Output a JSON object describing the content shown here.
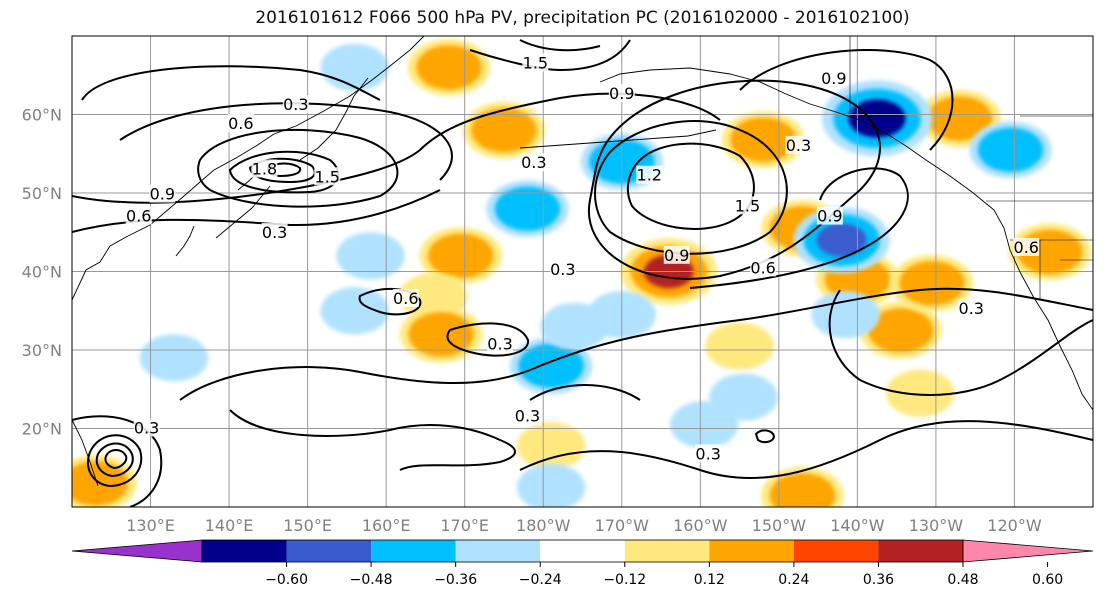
{
  "chart_data": {
    "type": "heatmap",
    "title": "2016101612 F066 500 hPa PV, precipitation PC (2016102000 - 2016102100)",
    "map": {
      "lon_range": [
        120,
        250
      ],
      "lat_range": [
        10,
        70
      ],
      "projection": "PlateCarree",
      "grid": true
    },
    "x_ticks": [
      "130°E",
      "140°E",
      "150°E",
      "160°E",
      "170°E",
      "180°W",
      "170°W",
      "160°W",
      "150°W",
      "140°W",
      "130°W",
      "120°W"
    ],
    "x_tick_values": [
      130,
      140,
      150,
      160,
      170,
      180,
      190,
      200,
      210,
      220,
      230,
      240
    ],
    "y_ticks": [
      "20°N",
      "30°N",
      "40°N",
      "50°N",
      "60°N"
    ],
    "y_tick_values": [
      20,
      30,
      40,
      50,
      60
    ],
    "colorbar": {
      "levels": [
        -0.72,
        -0.6,
        -0.48,
        -0.36,
        -0.24,
        -0.12,
        0.12,
        0.24,
        0.36,
        0.48,
        0.6,
        0.72
      ],
      "tick_labels": [
        "−0.60",
        "−0.48",
        "−0.36",
        "−0.24",
        "−0.12",
        "0.12",
        "0.24",
        "0.36",
        "0.48",
        "0.60"
      ],
      "tick_values": [
        -0.6,
        -0.48,
        -0.36,
        -0.24,
        -0.12,
        0.12,
        0.24,
        0.36,
        0.48,
        0.6
      ],
      "colors": [
        "#9932cc",
        "#00008b",
        "#3a5bcd",
        "#00bfff",
        "#b0e2ff",
        "#ffffff",
        "#ffe97f",
        "#ffa500",
        "#ff4500",
        "#b22222",
        "#ff88aa"
      ],
      "extend": "both"
    },
    "contour_labels": [
      {
        "text": "0.3",
        "lon": 148.5,
        "lat": 61.2
      },
      {
        "text": "0.6",
        "lon": 141.5,
        "lat": 58.8
      },
      {
        "text": "1.8",
        "lon": 144.5,
        "lat": 53.0
      },
      {
        "text": "1.5",
        "lon": 152.5,
        "lat": 52.0
      },
      {
        "text": "0.9",
        "lon": 131.5,
        "lat": 49.8
      },
      {
        "text": "0.6",
        "lon": 128.5,
        "lat": 47.0
      },
      {
        "text": "0.3",
        "lon": 145.8,
        "lat": 44.9
      },
      {
        "text": "1.5",
        "lon": 179.0,
        "lat": 66.5
      },
      {
        "text": "0.9",
        "lon": 190.0,
        "lat": 62.6
      },
      {
        "text": "0.3",
        "lon": 178.8,
        "lat": 53.8
      },
      {
        "text": "1.2",
        "lon": 193.5,
        "lat": 52.2
      },
      {
        "text": "1.5",
        "lon": 206.0,
        "lat": 48.3
      },
      {
        "text": "0.9",
        "lon": 197.0,
        "lat": 42.0
      },
      {
        "text": "0.6",
        "lon": 208.0,
        "lat": 40.4
      },
      {
        "text": "0.9",
        "lon": 217.0,
        "lat": 64.5
      },
      {
        "text": "0.3",
        "lon": 212.5,
        "lat": 56.0
      },
      {
        "text": "0.9",
        "lon": 216.5,
        "lat": 47.0
      },
      {
        "text": "0.6",
        "lon": 162.5,
        "lat": 36.5
      },
      {
        "text": "0.3",
        "lon": 182.5,
        "lat": 40.2
      },
      {
        "text": "0.3",
        "lon": 174.5,
        "lat": 30.7
      },
      {
        "text": "0.3",
        "lon": 178.0,
        "lat": 21.5
      },
      {
        "text": "0.3",
        "lon": 201.0,
        "lat": 16.7
      },
      {
        "text": "0.3",
        "lon": 234.5,
        "lat": 35.2
      },
      {
        "text": "0.6",
        "lon": 241.5,
        "lat": 43.0
      },
      {
        "text": "0.3",
        "lon": 129.5,
        "lat": 20.0
      }
    ],
    "precip_blobs": [
      {
        "lon": 168.0,
        "lat": 66.0,
        "value": 0.36
      },
      {
        "lon": 175.0,
        "lat": 58.0,
        "value": 0.36
      },
      {
        "lon": 169.5,
        "lat": 42.0,
        "value": 0.36
      },
      {
        "lon": 166.0,
        "lat": 36.8,
        "value": 0.24
      },
      {
        "lon": 167.0,
        "lat": 32.0,
        "value": 0.36
      },
      {
        "lon": 196.0,
        "lat": 40.0,
        "value": 0.48
      },
      {
        "lon": 208.0,
        "lat": 56.8,
        "value": 0.36
      },
      {
        "lon": 213.0,
        "lat": 45.5,
        "value": 0.36
      },
      {
        "lon": 220.0,
        "lat": 39.0,
        "value": 0.36
      },
      {
        "lon": 225.5,
        "lat": 32.5,
        "value": 0.36
      },
      {
        "lon": 229.5,
        "lat": 38.5,
        "value": 0.36
      },
      {
        "lon": 233.0,
        "lat": 59.5,
        "value": 0.36
      },
      {
        "lon": 244.5,
        "lat": 42.5,
        "value": 0.36
      },
      {
        "lon": 205.0,
        "lat": 30.5,
        "value": 0.24
      },
      {
        "lon": 228.0,
        "lat": 24.5,
        "value": 0.24
      },
      {
        "lon": 181.0,
        "lat": 17.8,
        "value": 0.24
      },
      {
        "lon": 213.0,
        "lat": 11.5,
        "value": 0.36
      },
      {
        "lon": 123.0,
        "lat": 13.0,
        "value": 0.36
      },
      {
        "lon": 158.0,
        "lat": 42.0,
        "value": -0.24
      },
      {
        "lon": 156.0,
        "lat": 35.0,
        "value": -0.24
      },
      {
        "lon": 178.0,
        "lat": 48.0,
        "value": -0.36
      },
      {
        "lon": 190.0,
        "lat": 54.0,
        "value": -0.36
      },
      {
        "lon": 181.0,
        "lat": 28.0,
        "value": -0.36
      },
      {
        "lon": 184.0,
        "lat": 33.0,
        "value": -0.24
      },
      {
        "lon": 190.0,
        "lat": 34.5,
        "value": -0.24
      },
      {
        "lon": 218.0,
        "lat": 44.0,
        "value": -0.48
      },
      {
        "lon": 222.5,
        "lat": 59.5,
        "value": -0.6
      },
      {
        "lon": 218.5,
        "lat": 34.5,
        "value": -0.24
      },
      {
        "lon": 239.5,
        "lat": 55.5,
        "value": -0.36
      },
      {
        "lon": 133.0,
        "lat": 29.0,
        "value": -0.24
      },
      {
        "lon": 156.0,
        "lat": 66.0,
        "value": -0.24
      },
      {
        "lon": 181.0,
        "lat": 12.5,
        "value": -0.24
      },
      {
        "lon": 205.5,
        "lat": 24.0,
        "value": -0.24
      },
      {
        "lon": 200.5,
        "lat": 20.5,
        "value": -0.24
      }
    ]
  }
}
